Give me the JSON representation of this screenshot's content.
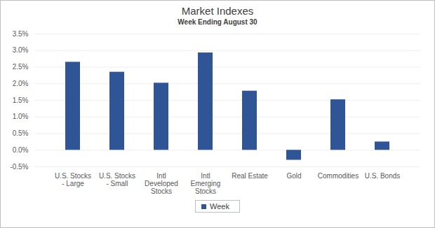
{
  "chart_data": {
    "type": "bar",
    "title": "Market Indexes",
    "subtitle": "Week Ending August 30",
    "categories": [
      "U.S. Stocks - Large",
      "U.S. Stocks - Small",
      "Intl Developed Stocks",
      "Intl Emerging Stocks",
      "Real Estate",
      "Gold",
      "Commodities",
      "U.S. Bonds"
    ],
    "series": [
      {
        "name": "Week",
        "color": "#2f5597",
        "values": [
          2.65,
          2.35,
          2.02,
          2.93,
          1.78,
          -0.3,
          1.52,
          0.25
        ]
      }
    ],
    "ylim": [
      -0.5,
      3.5
    ],
    "yticks": [
      {
        "value": -0.5,
        "label": "-0.5%"
      },
      {
        "value": 0,
        "label": "0.0%"
      },
      {
        "value": 0.5,
        "label": "0.5%"
      },
      {
        "value": 1,
        "label": "1.0%"
      },
      {
        "value": 1.5,
        "label": "1.5%"
      },
      {
        "value": 2,
        "label": "2.0%"
      },
      {
        "value": 2.5,
        "label": "2.5%"
      },
      {
        "value": 3,
        "label": "3.0%"
      },
      {
        "value": 3.5,
        "label": "3.5%"
      }
    ],
    "grid": true,
    "legend": "bottom"
  }
}
